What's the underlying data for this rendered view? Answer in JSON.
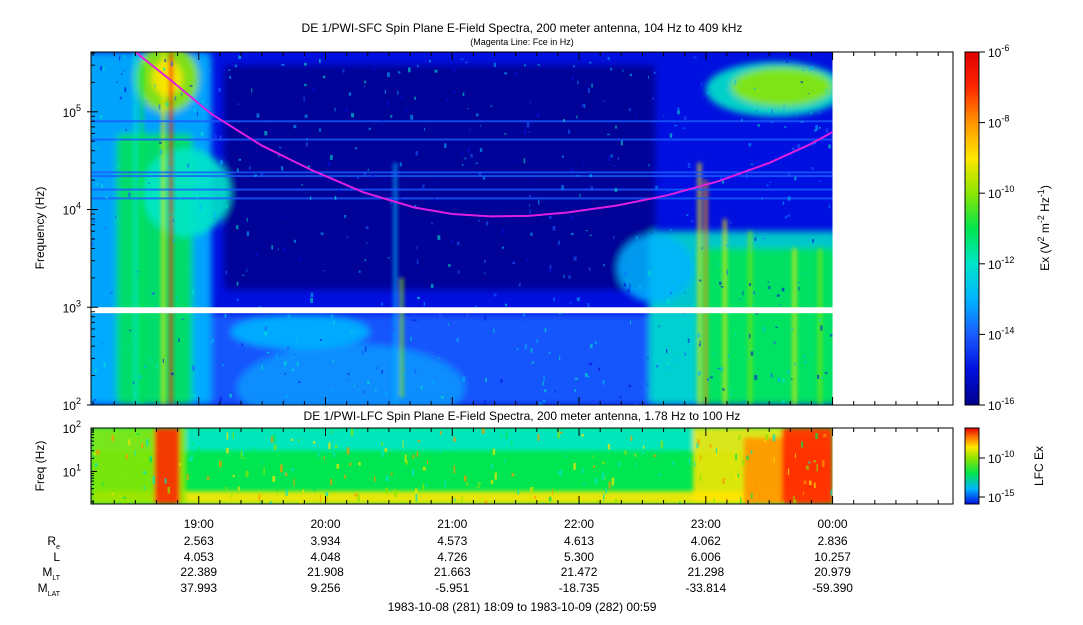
{
  "chart_data": [
    {
      "type": "heatmap",
      "title": "DE 1/PWI-SFC  Spin Plane E-Field Spectra, 200 meter antenna, 104 Hz to 409 kHz",
      "subtitle": "(Magenta Line: Fce in Hz)",
      "ylabel": "Frequency (Hz)",
      "yscale": "log",
      "ylim": [
        100,
        409000
      ],
      "y_ticks": [
        {
          "value": 100,
          "base": "10",
          "exp": "2"
        },
        {
          "value": 1000,
          "base": "10",
          "exp": "3"
        },
        {
          "value": 10000,
          "base": "10",
          "exp": "4"
        },
        {
          "value": 100000,
          "base": "10",
          "exp": "5"
        }
      ],
      "data_gap_hz": [
        870,
        1000
      ],
      "colorbar": {
        "label": "Ex (V² m⁻² Hz⁻¹)",
        "label_parts": [
          "Ex (V",
          "2",
          " m",
          "-2",
          " Hz",
          "-1",
          ")"
        ],
        "scale": "log",
        "range": [
          1e-16,
          1e-06
        ],
        "ticks": [
          {
            "value": 1e-06,
            "base": "10",
            "exp": "-6"
          },
          {
            "value": 1e-08,
            "base": "10",
            "exp": "-8"
          },
          {
            "value": 1e-10,
            "base": "10",
            "exp": "-10"
          },
          {
            "value": 1e-12,
            "base": "10",
            "exp": "-12"
          },
          {
            "value": 1e-14,
            "base": "10",
            "exp": "-14"
          },
          {
            "value": 1e-16,
            "base": "10",
            "exp": "-16"
          }
        ]
      },
      "fce_line": {
        "color": "#e020e0",
        "hours": [
          18.5,
          18.8,
          19.1,
          19.5,
          19.9,
          20.3,
          20.7,
          21.0,
          21.3,
          21.6,
          21.9,
          22.3,
          22.7,
          23.1,
          23.5,
          23.8,
          24.0
        ],
        "hz": [
          409000,
          200000,
          95000,
          45000,
          25000,
          15000,
          10500,
          9000,
          8500,
          8600,
          9300,
          11000,
          14000,
          19500,
          30000,
          45000,
          62000
        ]
      }
    },
    {
      "type": "heatmap",
      "title": "DE 1/PWI-LFC  Spin Plane E-Field Spectra, 200 meter antenna, 1.78 Hz to 100 Hz",
      "ylabel": "Freq (Hz)",
      "yscale": "log",
      "ylim": [
        1.78,
        100
      ],
      "y_ticks": [
        {
          "value": 10,
          "base": "10",
          "exp": "1"
        },
        {
          "value": 100,
          "base": "10",
          "exp": "2"
        }
      ],
      "colorbar": {
        "label": "LFC Ex",
        "scale": "log",
        "ticks": [
          {
            "value": 1e-10,
            "base": "10",
            "exp": "-10"
          },
          {
            "value": 1e-15,
            "base": "10",
            "exp": "-15"
          }
        ]
      }
    }
  ],
  "time_axis": {
    "xlim_hours": [
      18.15,
      24.95
    ],
    "data_end_hours": 24.0,
    "tick_labels": [
      "19:00",
      "20:00",
      "21:00",
      "22:00",
      "23:00",
      "00:00"
    ],
    "tick_hours": [
      19,
      20,
      21,
      22,
      23,
      24
    ]
  },
  "ephemeris": [
    {
      "label": "R",
      "sub": "e",
      "values": [
        "2.563",
        "3.934",
        "4.573",
        "4.613",
        "4.062",
        "2.836"
      ]
    },
    {
      "label": "L",
      "sub": "",
      "values": [
        "4.053",
        "4.048",
        "4.726",
        "5.300",
        "6.006",
        "10.257"
      ]
    },
    {
      "label": "M",
      "sub": "LT",
      "values": [
        "22.389",
        "21.908",
        "21.663",
        "21.472",
        "21.298",
        "20.979"
      ]
    },
    {
      "label": "M",
      "sub": "LAT",
      "values": [
        "37.993",
        "9.256",
        "-5.951",
        "-18.735",
        "-33.814",
        "-59.390"
      ]
    }
  ],
  "footer": "1983-10-08 (281) 18:09 to 1983-10-09 (282) 00:59",
  "colors": {
    "palette": [
      "#00008b",
      "#0010e0",
      "#1a5cff",
      "#00b4ff",
      "#00e6c8",
      "#00e650",
      "#8ce600",
      "#ffe600",
      "#ff9600",
      "#ff2800",
      "#e00000"
    ],
    "fce_line": "#e020e0",
    "gap": "#ffffff"
  }
}
